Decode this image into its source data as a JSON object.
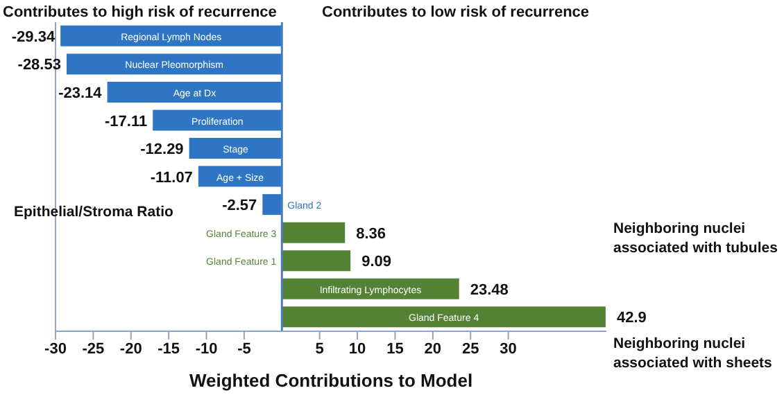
{
  "chart_data": {
    "type": "bar",
    "orientation": "horizontal",
    "categories": [
      "Regional Lymph Nodes",
      "Nuclear Pleomorphism",
      "Age at Dx",
      "Proliferation",
      "Stage",
      "Age + Size",
      "Gland 2",
      "Gland Feature 3",
      "Gland Feature 1",
      "Infiltrating Lymphocytes",
      "Gland Feature 4"
    ],
    "values": [
      -29.34,
      -28.53,
      -23.14,
      -17.11,
      -12.29,
      -11.07,
      -2.57,
      8.36,
      9.09,
      23.48,
      42.9
    ],
    "colors": [
      "#2e75c4",
      "#2e75c4",
      "#2e75c4",
      "#2e75c4",
      "#2e75c4",
      "#2e75c4",
      "#2e75c4",
      "#548235",
      "#548235",
      "#548235",
      "#548235"
    ],
    "xlabel": "Weighted Contributions to Model",
    "xlim": [
      -30,
      43
    ],
    "xticks": [
      -30,
      -25,
      -20,
      -15,
      -10,
      -5,
      5,
      10,
      15,
      20,
      25,
      30
    ],
    "data_labels": true,
    "grid": false,
    "legend": false,
    "tick_labels": "x",
    "annotations": [
      "Contributes to high risk of recurrence",
      "Contributes to low risk of recurrence",
      "Epithelial/Stroma Ratio",
      "Neighboring nuclei associated with tubules",
      "Neighboring nuclei associated with sheets"
    ]
  }
}
